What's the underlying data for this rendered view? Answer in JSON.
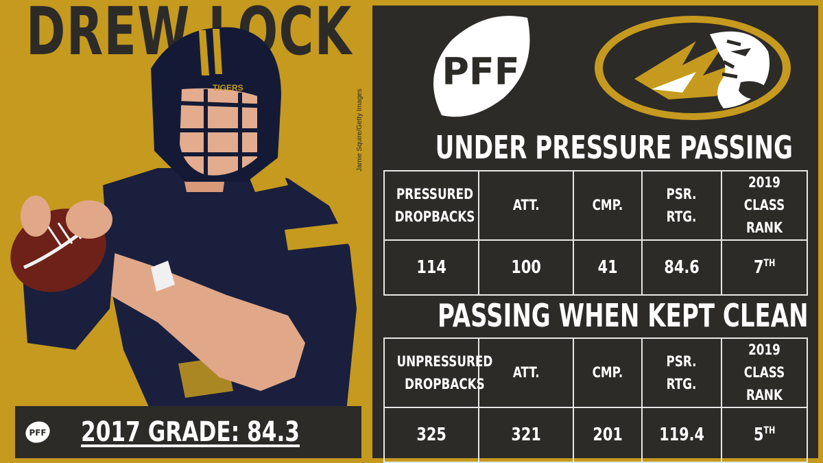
{
  "player": {
    "name": "DREW LOCK",
    "photo_credit": "Jamie Squire/Getty Images",
    "helmet_text": "TIGERS"
  },
  "grade": {
    "text": "2017 GRADE: 84.3",
    "logo_text": "PFF"
  },
  "logos": {
    "pff": "PFF",
    "team": "Missouri Tigers"
  },
  "colors": {
    "gold": "#c59a1f",
    "dark": "#2d2b28",
    "white": "#ffffff"
  },
  "under_pressure": {
    "title": "UNDER PRESSURE PASSING",
    "headers": [
      "PRESSURED\nDROPBACKS",
      "ATT.",
      "CMP.",
      "PSR.\nRTG.",
      "2019 CLASS\nRANK"
    ],
    "values": [
      "114",
      "100",
      "41",
      "84.6",
      "7"
    ],
    "rank_suffix": "TH"
  },
  "kept_clean": {
    "title": "PASSING WHEN KEPT CLEAN",
    "headers": [
      "UNPRESSURED\nDROPBACKS",
      "ATT.",
      "CMP.",
      "PSR.\nRTG.",
      "2019 CLASS\nRANK"
    ],
    "values": [
      "325",
      "321",
      "201",
      "119.4",
      "5"
    ],
    "rank_suffix": "TH"
  }
}
